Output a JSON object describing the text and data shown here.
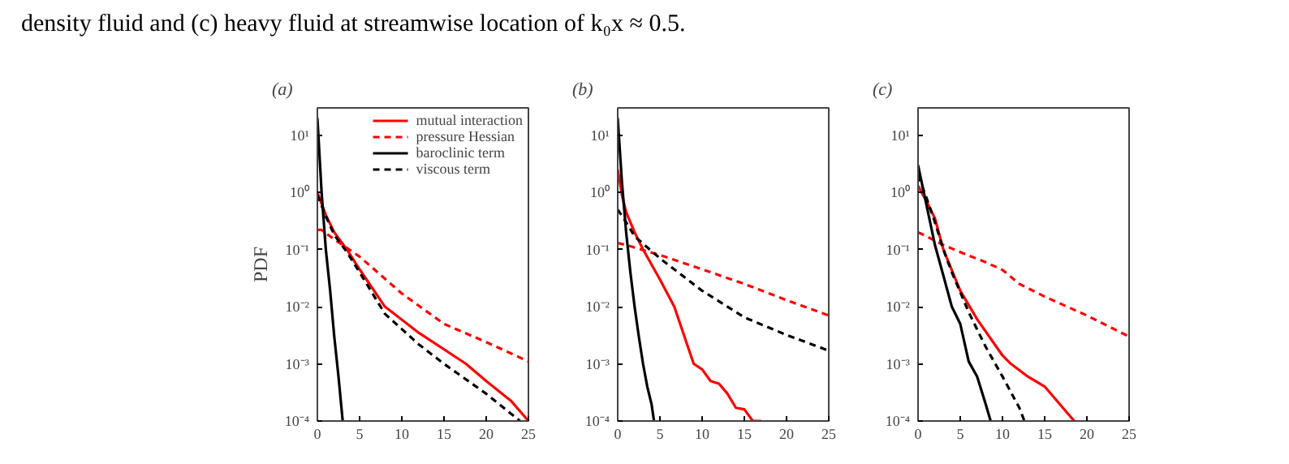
{
  "chart_data": [
    {
      "type": "line",
      "title": "(a)",
      "ylabel": "PDF",
      "annotations": [
        "density fluid and (c) heavy fluid at streamwise location of k₀x ≈ 0.5."
      ],
      "log": "y",
      "grid": false,
      "legend": "top right",
      "marker": "none",
      "xlim": [
        0,
        25
      ],
      "xticks": [
        0,
        5,
        10,
        15,
        20,
        25
      ],
      "ylim": [
        0.0001,
        30
      ],
      "yticks": [
        {
          "value": 0.0001,
          "label": "10⁻⁴"
        },
        {
          "value": 0.001,
          "label": "10⁻³"
        },
        {
          "value": 0.01,
          "label": "10⁻²"
        },
        {
          "value": 0.1,
          "label": "10⁻¹"
        },
        {
          "value": 1,
          "label": "10⁰"
        },
        {
          "value": 10,
          "label": "10¹"
        }
      ],
      "series": [
        {
          "name": "mutual interaction",
          "color": "#ff0000",
          "line_style": "solid",
          "x": [
            0,
            1,
            2,
            3.5,
            5,
            8,
            12,
            17.6,
            20,
            23,
            25
          ],
          "values": [
            1.0,
            0.4,
            0.2,
            0.1,
            0.045,
            0.01,
            0.0035,
            0.001,
            0.0005,
            0.00022,
            0.0001
          ]
        },
        {
          "name": "pressure Hessian",
          "color": "#ff0000",
          "line_style": "dashed",
          "x": [
            0,
            0.5,
            2,
            5,
            10,
            15,
            20,
            25
          ],
          "values": [
            0.22,
            0.22,
            0.15,
            0.075,
            0.017,
            0.005,
            0.0024,
            0.0011
          ]
        },
        {
          "name": "baroclinic term",
          "color": "#000000",
          "line_style": "solid",
          "x": [
            0,
            0.5,
            1,
            1.5,
            2,
            2.5,
            3
          ],
          "values": [
            20,
            1,
            0.1,
            0.02,
            0.003,
            0.0006,
            0.0001
          ]
        },
        {
          "name": "viscous term",
          "color": "#000000",
          "line_style": "dashed",
          "x": [
            0,
            1,
            2,
            3.5,
            5,
            8,
            12,
            15,
            20,
            24
          ],
          "values": [
            0.9,
            0.38,
            0.18,
            0.09,
            0.04,
            0.0075,
            0.0022,
            0.001,
            0.0003,
            0.0001
          ]
        }
      ]
    },
    {
      "type": "line",
      "title": "(b)",
      "log": "y",
      "grid": false,
      "legend": false,
      "marker": "none",
      "xlim": [
        0,
        25
      ],
      "xticks": [
        0,
        5,
        10,
        15,
        20,
        25
      ],
      "ylim": [
        0.0001,
        30
      ],
      "yticks": [
        {
          "value": 0.0001,
          "label": "10⁻⁴"
        },
        {
          "value": 0.001,
          "label": "10⁻³"
        },
        {
          "value": 0.01,
          "label": "10⁻²"
        },
        {
          "value": 0.1,
          "label": "10⁻¹"
        },
        {
          "value": 1,
          "label": "10⁰"
        },
        {
          "value": 10,
          "label": "10¹"
        }
      ],
      "series": [
        {
          "color": "#ff0000",
          "line_style": "solid",
          "x": [
            0,
            0.5,
            1,
            2,
            3,
            5,
            6.7,
            9,
            10,
            11,
            12,
            13,
            14,
            15,
            16,
            17
          ],
          "values": [
            2.5,
            0.9,
            0.45,
            0.2,
            0.1,
            0.03,
            0.01,
            0.001,
            0.0008,
            0.0005,
            0.00045,
            0.0003,
            0.00017,
            0.00016,
            0.0001,
            0.0001
          ]
        },
        {
          "color": "#ff0000",
          "line_style": "dashed",
          "x": [
            0,
            1,
            5,
            10,
            15,
            20,
            25
          ],
          "values": [
            0.13,
            0.12,
            0.08,
            0.045,
            0.025,
            0.013,
            0.007
          ]
        },
        {
          "color": "#000000",
          "line_style": "solid",
          "x": [
            0,
            0.5,
            1,
            1.5,
            2,
            2.5,
            3,
            3.5,
            4,
            4.3
          ],
          "values": [
            20,
            1.5,
            0.2,
            0.04,
            0.01,
            0.003,
            0.001,
            0.0004,
            0.0002,
            0.0001
          ]
        },
        {
          "color": "#000000",
          "line_style": "dashed",
          "x": [
            0,
            1,
            2,
            5,
            10,
            15,
            20,
            25
          ],
          "values": [
            0.5,
            0.3,
            0.17,
            0.07,
            0.019,
            0.0065,
            0.0032,
            0.0017
          ]
        }
      ]
    },
    {
      "type": "line",
      "title": "(c)",
      "log": "y",
      "grid": false,
      "legend": false,
      "marker": "none",
      "xlim": [
        0,
        25
      ],
      "xticks": [
        0,
        5,
        10,
        15,
        20,
        25
      ],
      "ylim": [
        0.0001,
        30
      ],
      "yticks": [
        {
          "value": 0.0001,
          "label": "10⁻⁴"
        },
        {
          "value": 0.001,
          "label": "10⁻³"
        },
        {
          "value": 0.01,
          "label": "10⁻²"
        },
        {
          "value": 0.1,
          "label": "10⁻¹"
        },
        {
          "value": 1,
          "label": "10⁰"
        },
        {
          "value": 10,
          "label": "10¹"
        }
      ],
      "series": [
        {
          "color": "#ff0000",
          "line_style": "solid",
          "x": [
            0,
            1,
            2,
            3,
            5,
            7,
            10,
            11,
            13,
            15,
            18.5
          ],
          "values": [
            1.3,
            0.7,
            0.35,
            0.1,
            0.019,
            0.006,
            0.0014,
            0.001,
            0.0006,
            0.0004,
            0.0001
          ]
        },
        {
          "color": "#ff0000",
          "line_style": "dashed",
          "x": [
            0,
            1,
            3,
            5,
            8,
            10,
            12,
            15,
            20,
            25
          ],
          "values": [
            0.2,
            0.17,
            0.12,
            0.09,
            0.06,
            0.044,
            0.025,
            0.015,
            0.007,
            0.003
          ]
        },
        {
          "color": "#000000",
          "line_style": "solid",
          "x": [
            0,
            1,
            2,
            3,
            4,
            5,
            6,
            7,
            8,
            8.6
          ],
          "values": [
            3,
            0.6,
            0.12,
            0.035,
            0.01,
            0.005,
            0.0011,
            0.0006,
            0.0002,
            0.0001
          ]
        },
        {
          "color": "#000000",
          "line_style": "dashed",
          "x": [
            0,
            1,
            2,
            3,
            4,
            5,
            6,
            8,
            10,
            12,
            12.6
          ],
          "values": [
            2,
            0.8,
            0.3,
            0.1,
            0.04,
            0.018,
            0.008,
            0.002,
            0.0006,
            0.00017,
            0.0001
          ]
        }
      ]
    }
  ]
}
